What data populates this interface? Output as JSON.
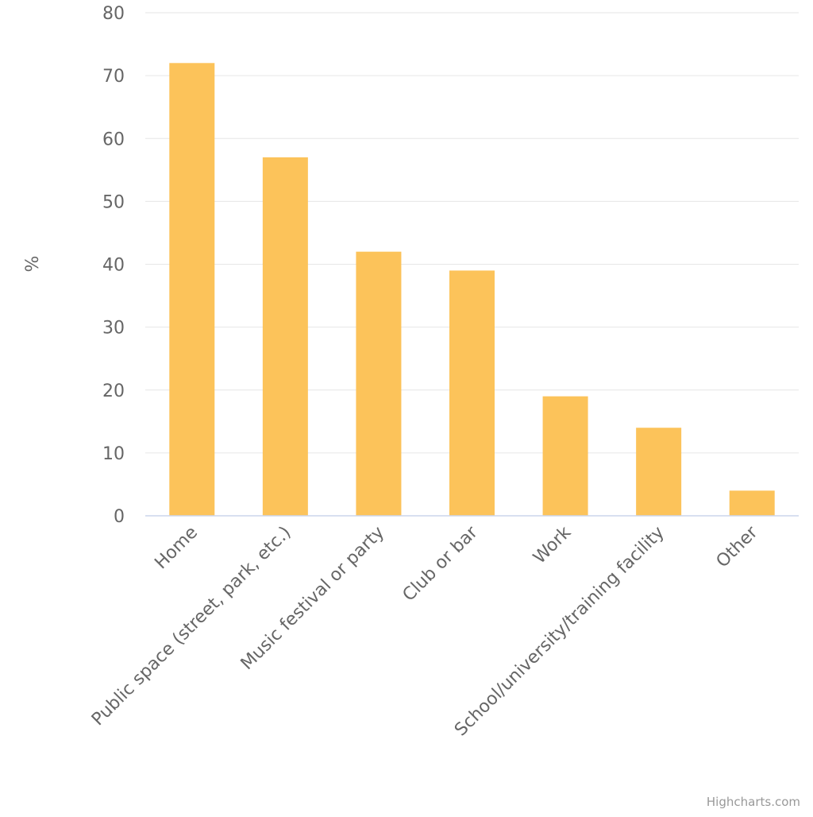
{
  "chart_data": {
    "type": "bar",
    "categories": [
      "Home",
      "Public space (street, park, etc.)",
      "Music festival or party",
      "Club or bar",
      "Work",
      "School/university/training facility",
      "Other"
    ],
    "values": [
      72,
      57,
      42,
      39,
      19,
      14,
      4
    ],
    "title": "",
    "xlabel": "",
    "ylabel": "%",
    "ylim": [
      0,
      80
    ],
    "yticks": [
      0,
      10,
      20,
      30,
      40,
      50,
      60,
      70,
      80
    ],
    "grid": true,
    "legend": "none",
    "bar_color": "#fcc35a",
    "grid_color": "#e6e6e6",
    "axis_color": "#ccd6eb",
    "text_color": "#666666"
  },
  "credits": "Highcharts.com"
}
